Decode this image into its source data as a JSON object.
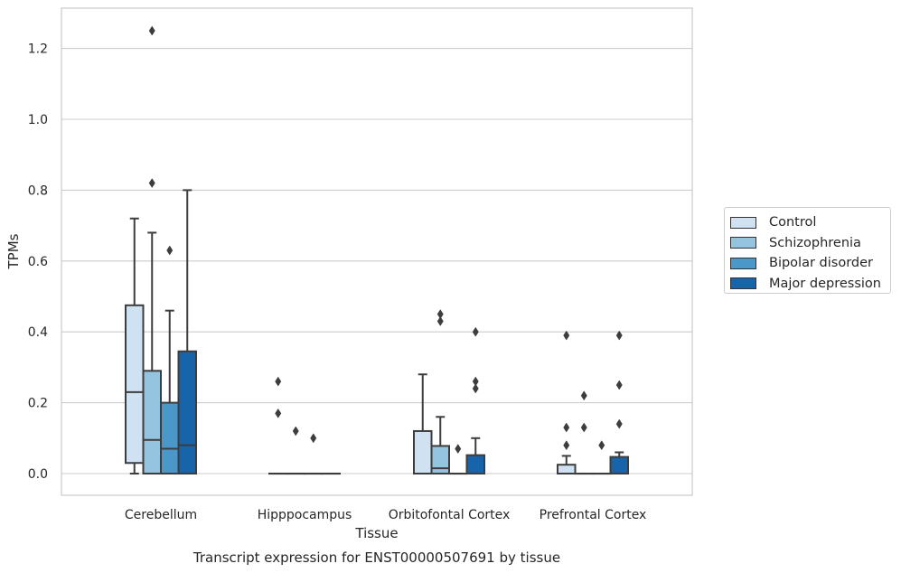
{
  "chart_data": {
    "type": "box",
    "title": "Transcript expression for ENST00000507691 by tissue",
    "xlabel": "Tissue",
    "ylabel": "TPMs",
    "ylim": [
      -0.06,
      1.32
    ],
    "yticks": [
      0.0,
      0.2,
      0.4,
      0.6,
      0.8,
      1.0,
      1.2
    ],
    "ytick_labels": [
      "0.0",
      "0.2",
      "0.4",
      "0.6",
      "0.8",
      "1.0",
      "1.2"
    ],
    "grid": "horizontal",
    "legend_position": "right",
    "categories": [
      "Cerebellum",
      "Hipppocampus",
      "Orbitofontal Cortex",
      "Prefrontal Cortex"
    ],
    "series": [
      {
        "name": "Control",
        "color": "#d0e1f2",
        "boxes": [
          {
            "q1": 0.03,
            "median": 0.23,
            "q3": 0.475,
            "whisker_low": 0.0,
            "whisker_high": 0.72,
            "outliers": []
          },
          {
            "q1": 0.0,
            "median": 0.0,
            "q3": 0.0,
            "whisker_low": 0.0,
            "whisker_high": 0.0,
            "outliers": [
              0.26,
              0.17
            ]
          },
          {
            "q1": 0.0,
            "median": 0.0,
            "q3": 0.12,
            "whisker_low": 0.0,
            "whisker_high": 0.28,
            "outliers": []
          },
          {
            "q1": 0.0,
            "median": 0.0,
            "q3": 0.025,
            "whisker_low": 0.0,
            "whisker_high": 0.05,
            "outliers": [
              0.39,
              0.13,
              0.08
            ]
          }
        ]
      },
      {
        "name": "Schizophrenia",
        "color": "#94c4df",
        "boxes": [
          {
            "q1": 0.0,
            "median": 0.095,
            "q3": 0.29,
            "whisker_low": 0.0,
            "whisker_high": 0.68,
            "outliers": [
              1.25,
              0.82
            ]
          },
          {
            "q1": 0.0,
            "median": 0.0,
            "q3": 0.0,
            "whisker_low": 0.0,
            "whisker_high": 0.0,
            "outliers": [
              0.12
            ]
          },
          {
            "q1": 0.0,
            "median": 0.015,
            "q3": 0.078,
            "whisker_low": 0.0,
            "whisker_high": 0.16,
            "outliers": [
              0.45,
              0.43
            ]
          },
          {
            "q1": 0.0,
            "median": 0.0,
            "q3": 0.0,
            "whisker_low": 0.0,
            "whisker_high": 0.0,
            "outliers": [
              0.22,
              0.13
            ]
          }
        ]
      },
      {
        "name": "Bipolar disorder",
        "color": "#4a98c9",
        "boxes": [
          {
            "q1": 0.0,
            "median": 0.07,
            "q3": 0.2,
            "whisker_low": 0.0,
            "whisker_high": 0.46,
            "outliers": [
              0.63
            ]
          },
          {
            "q1": 0.0,
            "median": 0.0,
            "q3": 0.0,
            "whisker_low": 0.0,
            "whisker_high": 0.0,
            "outliers": [
              0.1
            ]
          },
          {
            "q1": 0.0,
            "median": 0.0,
            "q3": 0.0,
            "whisker_low": 0.0,
            "whisker_high": 0.0,
            "outliers": [
              0.07
            ]
          },
          {
            "q1": 0.0,
            "median": 0.0,
            "q3": 0.0,
            "whisker_low": 0.0,
            "whisker_high": 0.0,
            "outliers": [
              0.08
            ]
          }
        ]
      },
      {
        "name": "Major depression",
        "color": "#1764ab",
        "boxes": [
          {
            "q1": 0.0,
            "median": 0.08,
            "q3": 0.345,
            "whisker_low": 0.0,
            "whisker_high": 0.8,
            "outliers": []
          },
          {
            "q1": 0.0,
            "median": 0.0,
            "q3": 0.0,
            "whisker_low": 0.0,
            "whisker_high": 0.0,
            "outliers": []
          },
          {
            "q1": 0.0,
            "median": 0.0,
            "q3": 0.052,
            "whisker_low": 0.0,
            "whisker_high": 0.1,
            "outliers": [
              0.4,
              0.26,
              0.24
            ]
          },
          {
            "q1": 0.0,
            "median": 0.0,
            "q3": 0.047,
            "whisker_low": 0.0,
            "whisker_high": 0.06,
            "outliers": [
              0.39,
              0.25,
              0.14
            ]
          }
        ]
      }
    ]
  }
}
